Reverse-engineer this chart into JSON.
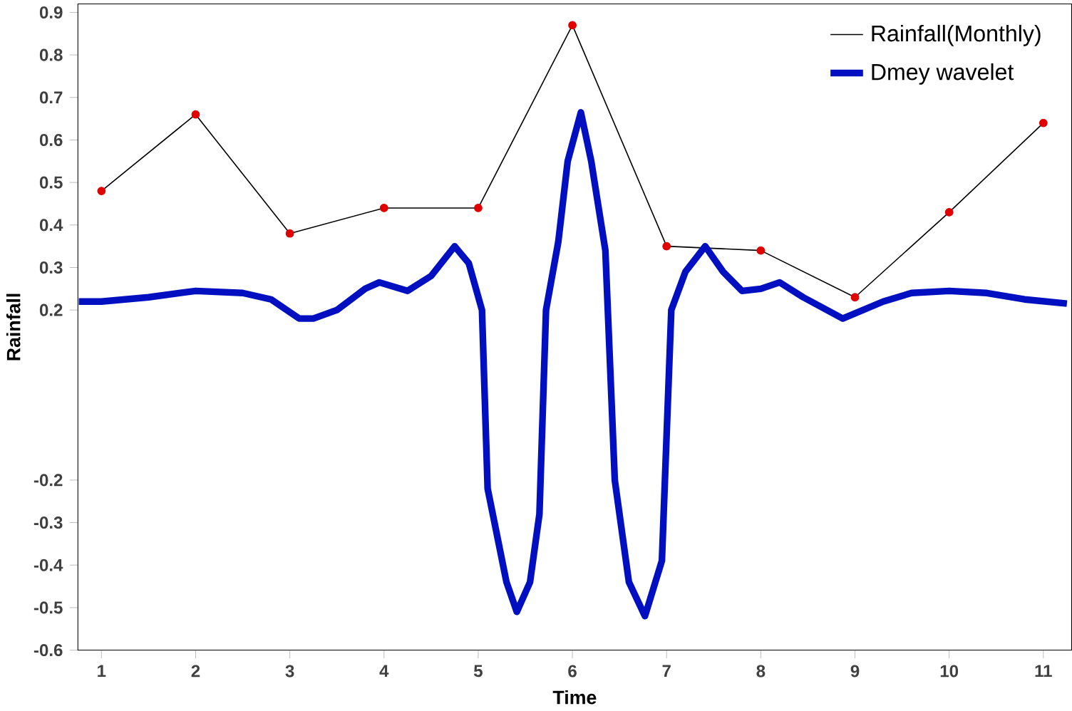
{
  "chart_data": {
    "type": "line",
    "xlabel": "Time",
    "ylabel": "Rainfall",
    "xlim": [
      0.75,
      11.3
    ],
    "xticks": [
      1,
      2,
      3,
      4,
      5,
      6,
      7,
      8,
      9,
      10,
      11
    ],
    "ylim": [
      -0.6,
      0.92
    ],
    "yticks": [
      -0.6,
      -0.5,
      -0.4,
      -0.3,
      -0.2,
      0.2,
      0.3,
      0.4,
      0.5,
      0.6,
      0.7,
      0.8,
      0.9
    ],
    "legend": "top right",
    "grid": false,
    "series": [
      {
        "name": "Rainfall(Monthly)",
        "color": "#000000",
        "marker": "circle",
        "colors": [
          "#e00000",
          "#e00000",
          "#e00000",
          "#e00000",
          "#e00000",
          "#e00000",
          "#e00000",
          "#e00000",
          "#e00000",
          "#e00000",
          "#e00000"
        ],
        "x": [
          1,
          2,
          3,
          4,
          5,
          6,
          7,
          8,
          9,
          10,
          11
        ],
        "values": [
          0.48,
          0.66,
          0.38,
          0.44,
          0.44,
          0.87,
          0.35,
          0.34,
          0.23,
          0.43,
          0.64
        ]
      },
      {
        "name": "Dmey wavelet",
        "color": "#0010c0",
        "marker": "none",
        "x": [
          0.76,
          1,
          1.5,
          2,
          2.5,
          2.8,
          3.1,
          3.25,
          3.5,
          3.8,
          3.95,
          4.25,
          4.5,
          4.75,
          4.9,
          5.04,
          5.1,
          5.2,
          5.3,
          5.41,
          5.55,
          5.65,
          5.72,
          5.85,
          5.95,
          6.09,
          6.2,
          6.35,
          6.45,
          6.6,
          6.77,
          6.95,
          7.05,
          7.2,
          7.41,
          7.6,
          7.8,
          8.0,
          8.2,
          8.45,
          8.87,
          9.3,
          9.6,
          10,
          10.4,
          10.8,
          11.25
        ],
        "values": [
          0.22,
          0.22,
          0.23,
          0.245,
          0.24,
          0.225,
          0.18,
          0.18,
          0.2,
          0.25,
          0.265,
          0.245,
          0.28,
          0.35,
          0.31,
          0.2,
          -0.22,
          -0.33,
          -0.44,
          -0.51,
          -0.44,
          -0.28,
          0.2,
          0.36,
          0.55,
          0.665,
          0.55,
          0.34,
          -0.2,
          -0.44,
          -0.52,
          -0.39,
          0.2,
          0.29,
          0.35,
          0.29,
          0.245,
          0.25,
          0.265,
          0.23,
          0.18,
          0.22,
          0.24,
          0.245,
          0.24,
          0.225,
          0.215
        ]
      }
    ]
  }
}
